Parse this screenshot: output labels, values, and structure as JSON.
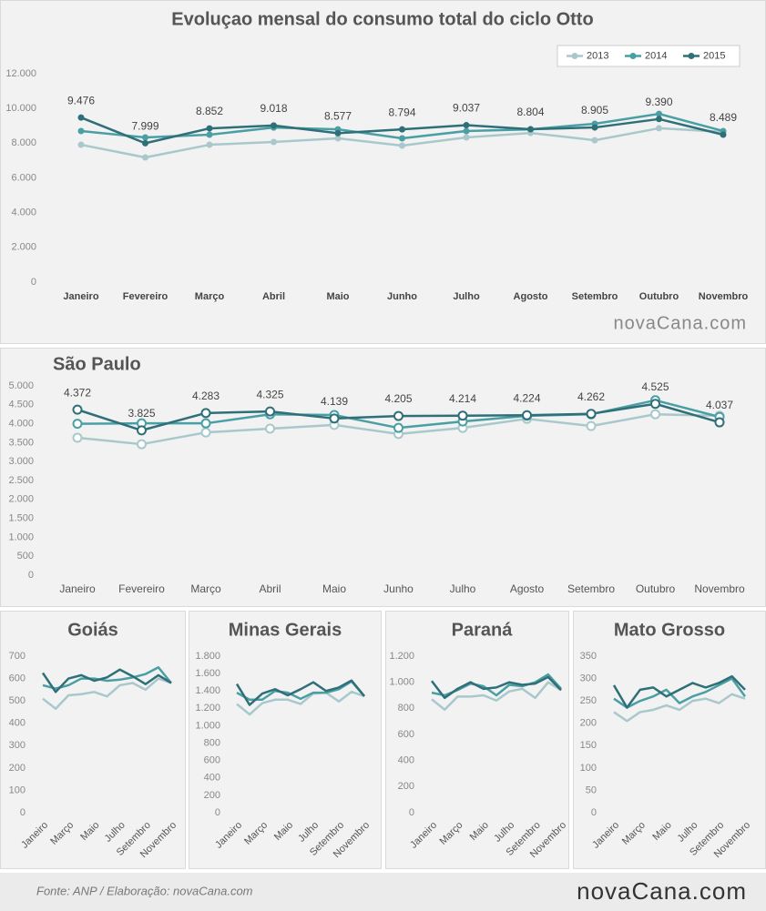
{
  "chart_data": [
    {
      "type": "line",
      "title": "Evoluçao mensal do consumo total do ciclo Otto",
      "legend": "top-right",
      "markers": "filled",
      "watermark": "novaCana.com",
      "categories": [
        "Janeiro",
        "Fevereiro",
        "Março",
        "Abril",
        "Maio",
        "Junho",
        "Julho",
        "Agosto",
        "Setembro",
        "Outubro",
        "Novembro"
      ],
      "ylim": [
        0,
        12000
      ],
      "yticks": [
        0,
        {
          "value": 2000,
          "label": "2.000"
        },
        {
          "value": 4000,
          "label": "4.000"
        },
        {
          "value": 6000,
          "label": "6.000"
        },
        {
          "value": 8000,
          "label": "8.000"
        },
        {
          "value": 10000,
          "label": "10.000"
        },
        {
          "value": 12000,
          "label": "12.000"
        }
      ],
      "series": [
        {
          "name": "2013",
          "color": "#a9c8cc",
          "values": [
            7910,
            7180,
            7910,
            8070,
            8280,
            7860,
            8330,
            8590,
            8170,
            8860,
            8650
          ]
        },
        {
          "name": "2014",
          "color": "#4a9fa5",
          "values": [
            8700,
            8330,
            8490,
            8900,
            8800,
            8280,
            8700,
            8800,
            9120,
            9690,
            8700
          ]
        },
        {
          "name": "2015",
          "color": "#2f6f78",
          "values": [
            9476,
            7999,
            8852,
            9018,
            8577,
            8794,
            9037,
            8804,
            8905,
            9390,
            8489
          ],
          "value_labels": [
            "9.476",
            "7.999",
            "8.852",
            "9.018",
            "8.577",
            "8.794",
            "9.037",
            "8.804",
            "8.905",
            "9.390",
            "8.489"
          ]
        }
      ]
    },
    {
      "type": "line",
      "title": "São Paulo",
      "markers": "open",
      "categories": [
        "Janeiro",
        "Fevereiro",
        "Março",
        "Abril",
        "Maio",
        "Junho",
        "Julho",
        "Agosto",
        "Setembro",
        "Outubro",
        "Novembro"
      ],
      "ylim": [
        0,
        5000
      ],
      "yticks": [
        0,
        500,
        {
          "value": 1000,
          "label": "1.000"
        },
        {
          "value": 1500,
          "label": "1.500"
        },
        {
          "value": 2000,
          "label": "2.000"
        },
        {
          "value": 2500,
          "label": "2.500"
        },
        {
          "value": 3000,
          "label": "3.000"
        },
        {
          "value": 3500,
          "label": "3.500"
        },
        {
          "value": 4000,
          "label": "4.000"
        },
        {
          "value": 4500,
          "label": "4.500"
        },
        {
          "value": 5000,
          "label": "5.000"
        }
      ],
      "series": [
        {
          "color": "#a9c8cc",
          "values": [
            3630,
            3460,
            3770,
            3870,
            3970,
            3730,
            3890,
            4130,
            3940,
            4250,
            4210
          ]
        },
        {
          "color": "#4a9fa5",
          "values": [
            4000,
            4010,
            4010,
            4250,
            4230,
            3890,
            4060,
            4210,
            4250,
            4620,
            4180
          ]
        },
        {
          "color": "#2f6f78",
          "values": [
            4372,
            3825,
            4283,
            4325,
            4139,
            4205,
            4214,
            4224,
            4262,
            4525,
            4037
          ],
          "value_labels": [
            "4.372",
            "3.825",
            "4.283",
            "4.325",
            "4.139",
            "4.205",
            "4.214",
            "4.224",
            "4.262",
            "4.525",
            "4.037"
          ]
        }
      ]
    },
    {
      "type": "line",
      "title": "Goiás",
      "categories": [
        "Janeiro",
        null,
        "Março",
        null,
        "Maio",
        null,
        "Julho",
        null,
        "Setembro",
        null,
        "Novembro"
      ],
      "ylim": [
        0,
        700
      ],
      "yticks": [
        0,
        100,
        200,
        300,
        400,
        500,
        600,
        700
      ],
      "series": [
        {
          "color": "#a9c8cc",
          "values": [
            510,
            465,
            525,
            530,
            540,
            520,
            570,
            580,
            550,
            600,
            580
          ]
        },
        {
          "color": "#4a9fa5",
          "values": [
            570,
            555,
            570,
            600,
            600,
            590,
            595,
            605,
            620,
            650,
            580
          ]
        },
        {
          "color": "#2f6f78",
          "values": [
            625,
            540,
            600,
            615,
            590,
            605,
            640,
            610,
            575,
            615,
            580
          ]
        }
      ]
    },
    {
      "type": "line",
      "title": "Minas Gerais",
      "categories": [
        "Janeiro",
        null,
        "Março",
        null,
        "Maio",
        null,
        "Julho",
        null,
        "Setembro",
        null,
        "Novembro"
      ],
      "ylim": [
        0,
        1800
      ],
      "yticks": [
        0,
        200,
        400,
        600,
        800,
        {
          "value": 1000,
          "label": "1.000"
        },
        {
          "value": 1200,
          "label": "1.200"
        },
        {
          "value": 1400,
          "label": "1.400"
        },
        {
          "value": 1600,
          "label": "1.600"
        },
        {
          "value": 1800,
          "label": "1.800"
        }
      ],
      "series": [
        {
          "color": "#a9c8cc",
          "values": [
            1250,
            1130,
            1260,
            1300,
            1300,
            1250,
            1370,
            1380,
            1280,
            1390,
            1340
          ]
        },
        {
          "color": "#4a9fa5",
          "values": [
            1380,
            1300,
            1300,
            1400,
            1380,
            1310,
            1380,
            1380,
            1420,
            1510,
            1340
          ]
        },
        {
          "color": "#2f6f78",
          "values": [
            1480,
            1240,
            1370,
            1420,
            1350,
            1420,
            1500,
            1400,
            1440,
            1520,
            1340
          ]
        }
      ]
    },
    {
      "type": "line",
      "title": "Paraná",
      "categories": [
        "Janeiro",
        null,
        "Março",
        null,
        "Maio",
        null,
        "Julho",
        null,
        "Setembro",
        null,
        "Novembro"
      ],
      "ylim": [
        0,
        1200
      ],
      "yticks": [
        0,
        200,
        400,
        600,
        800,
        {
          "value": 1000,
          "label": "1.000"
        },
        {
          "value": 1200,
          "label": "1.200"
        }
      ],
      "series": [
        {
          "color": "#a9c8cc",
          "values": [
            870,
            790,
            890,
            890,
            900,
            860,
            930,
            950,
            880,
            1000,
            940
          ]
        },
        {
          "color": "#4a9fa5",
          "values": [
            920,
            900,
            940,
            990,
            970,
            900,
            980,
            970,
            1000,
            1060,
            950
          ]
        },
        {
          "color": "#2f6f78",
          "values": [
            1010,
            880,
            950,
            1000,
            950,
            960,
            1000,
            980,
            990,
            1040,
            940
          ]
        }
      ]
    },
    {
      "type": "line",
      "title": "Mato Grosso",
      "categories": [
        "Janeiro",
        null,
        "Março",
        null,
        "Maio",
        null,
        "Julho",
        null,
        "Setembro",
        null,
        "Novembro"
      ],
      "ylim": [
        0,
        350
      ],
      "yticks": [
        0,
        50,
        100,
        150,
        200,
        250,
        300,
        350
      ],
      "series": [
        {
          "color": "#a9c8cc",
          "values": [
            225,
            205,
            225,
            230,
            240,
            230,
            250,
            255,
            245,
            265,
            255
          ]
        },
        {
          "color": "#4a9fa5",
          "values": [
            255,
            235,
            250,
            260,
            275,
            245,
            260,
            270,
            285,
            300,
            260
          ]
        },
        {
          "color": "#2f6f78",
          "values": [
            285,
            235,
            275,
            280,
            260,
            275,
            290,
            280,
            290,
            305,
            275
          ]
        }
      ]
    }
  ],
  "footer": {
    "source": "Fonte:  ANP / Elaboração:  novaCana.com",
    "logo": "novaCana.com"
  }
}
